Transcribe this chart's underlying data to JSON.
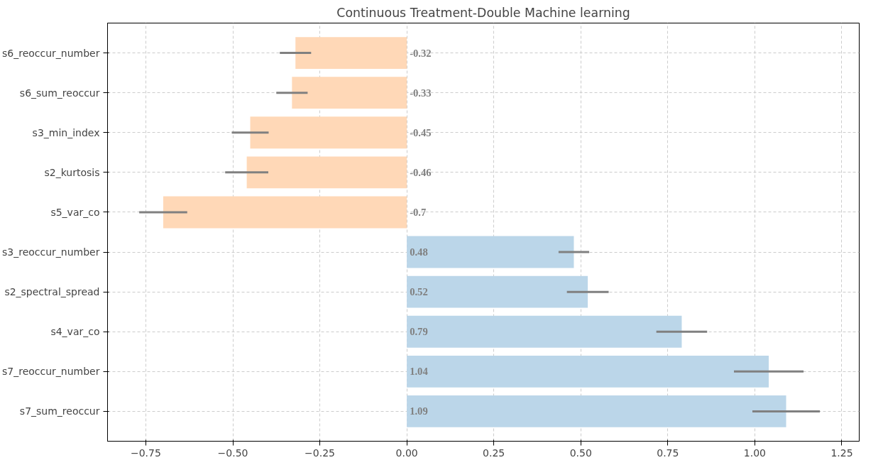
{
  "chart_data": {
    "type": "bar",
    "orientation": "horizontal",
    "title": "Continuous Treatment-Double Machine learning",
    "categories": [
      "s6_reoccur_number",
      "s6_sum_reoccur",
      "s3_min_index",
      "s2_kurtosis",
      "s5_var_co",
      "s3_reoccur_number",
      "s2_spectral_spread",
      "s4_var_co",
      "s7_reoccur_number",
      "s7_sum_reoccur"
    ],
    "values": [
      -0.32,
      -0.33,
      -0.45,
      -0.46,
      -0.7,
      0.48,
      0.52,
      0.79,
      1.04,
      1.09
    ],
    "errors": [
      0.045,
      0.045,
      0.053,
      0.062,
      0.069,
      0.044,
      0.06,
      0.073,
      0.1,
      0.097
    ],
    "colors": [
      "#ffd8b7",
      "#ffd8b7",
      "#ffd8b7",
      "#ffd8b7",
      "#ffd8b7",
      "#bbd6e9",
      "#bbd6e9",
      "#bbd6e9",
      "#bbd6e9",
      "#bbd6e9"
    ],
    "data_labels": true,
    "xlim": [
      -0.86,
      1.3
    ],
    "xticks": [
      {
        "value": -0.75,
        "label": "−0.75"
      },
      {
        "value": -0.5,
        "label": "−0.50"
      },
      {
        "value": -0.25,
        "label": "−0.25"
      },
      {
        "value": 0,
        "label": "0.00"
      },
      {
        "value": 0.25,
        "label": "0.25"
      },
      {
        "value": 0.5,
        "label": "0.50"
      },
      {
        "value": 0.75,
        "label": "0.75"
      },
      {
        "value": 1,
        "label": "1.00"
      },
      {
        "value": 1.25,
        "label": "1.25"
      }
    ],
    "grid": true
  }
}
